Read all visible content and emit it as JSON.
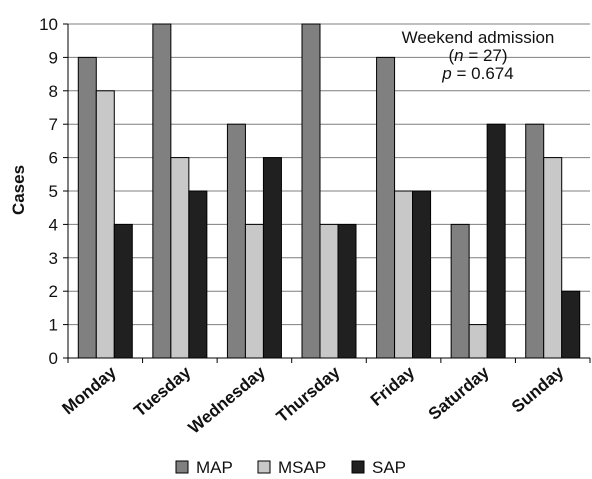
{
  "chart_data": {
    "type": "bar",
    "categories": [
      "Monday",
      "Tuesday",
      "Wednesday",
      "Thursday",
      "Friday",
      "Saturday",
      "Sunday"
    ],
    "series": [
      {
        "name": "MAP",
        "color": "#808080",
        "values": [
          9,
          10,
          7,
          10,
          9,
          4,
          7
        ]
      },
      {
        "name": "MSAP",
        "color": "#c8c8c8",
        "values": [
          8,
          6,
          4,
          4,
          5,
          1,
          6
        ]
      },
      {
        "name": "SAP",
        "color": "#202020",
        "values": [
          4,
          5,
          6,
          4,
          5,
          7,
          2
        ]
      }
    ],
    "ylabel": "Cases",
    "ylim": [
      0,
      10
    ],
    "yticks": [
      0,
      1,
      2,
      3,
      4,
      5,
      6,
      7,
      8,
      9,
      10
    ],
    "grid": true,
    "legend_position": "bottom",
    "annotation": {
      "line1": "Weekend admission",
      "line2_open": "(",
      "line2_var": "n",
      "line2_rest": " = 27)",
      "line3_var": "p",
      "line3_rest": " = 0.674"
    }
  }
}
